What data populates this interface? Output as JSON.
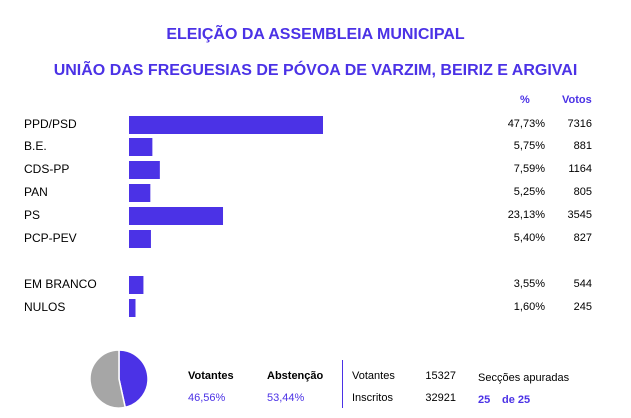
{
  "header": {
    "title_line1": "ELEIÇÃO DA ASSEMBLEIA MUNICIPAL",
    "title_line2": "UNIÃO DAS FREGUESIAS DE PÓVOA DE VARZIM, BEIRIZ E ARGIVAI",
    "col_pct": "%",
    "col_votes": "Votos"
  },
  "colors": {
    "accent": "#4b32e6",
    "abstention": "#a6a6a6"
  },
  "chart_data": {
    "type": "bar",
    "orientation": "horizontal",
    "categories": [
      "PPD/PSD",
      "B.E.",
      "CDS-PP",
      "PAN",
      "PS",
      "PCP-PEV",
      "EM BRANCO",
      "NULOS"
    ],
    "values": [
      47.73,
      5.75,
      7.59,
      5.25,
      23.13,
      5.4,
      3.55,
      1.6
    ],
    "pct_labels": [
      "47,73%",
      "5,75%",
      "7,59%",
      "5,25%",
      "23,13%",
      "5,40%",
      "3,55%",
      "1,60%"
    ],
    "votes": [
      "7316",
      "881",
      "1164",
      "805",
      "3545",
      "827",
      "544",
      "245"
    ],
    "xlim": [
      0,
      47.73
    ]
  },
  "pie_data": {
    "type": "pie",
    "slices": [
      {
        "label": "Votantes",
        "value": 46.56
      },
      {
        "label": "Abstenção",
        "value": 53.44
      }
    ]
  },
  "summary": {
    "voters_label": "Votantes",
    "voters_pct": "46,56%",
    "abstention_label": "Abstenção",
    "abstention_pct": "53,44%",
    "voters_count_label": "Votantes",
    "voters_count": "15327",
    "registered_label": "Inscritos",
    "registered_count": "32921",
    "sections_label": "Secções apuradas",
    "sections_done": "25",
    "sections_of": "de 25"
  }
}
